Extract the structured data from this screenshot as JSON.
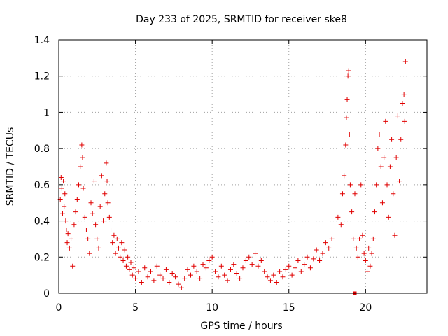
{
  "chart_data": {
    "type": "scatter",
    "title": "Day 233 of 2025, SRMTID for receiver ske8",
    "xlabel": "GPS time / hours",
    "ylabel": "SRMTID / TECUs",
    "xlim": [
      0,
      24
    ],
    "ylim": [
      0,
      1.4
    ],
    "xticks": [
      0,
      5,
      10,
      15,
      20
    ],
    "xtick_labels": [
      "0",
      "5",
      "10",
      "15",
      "20"
    ],
    "yticks": [
      0,
      0.2,
      0.4,
      0.6,
      0.8,
      1,
      1.2,
      1.4
    ],
    "ytick_labels": [
      "0",
      "0.2",
      "0.4",
      "0.6",
      "0.8",
      "1",
      "1.2",
      "1.4"
    ],
    "grid": true,
    "marker": "plus",
    "color": "#e00000",
    "series": [
      {
        "name": "SRMTID",
        "points": [
          [
            0.1,
            0.52
          ],
          [
            0.15,
            0.64
          ],
          [
            0.2,
            0.58
          ],
          [
            0.25,
            0.44
          ],
          [
            0.3,
            0.62
          ],
          [
            0.35,
            0.48
          ],
          [
            0.4,
            0.55
          ],
          [
            0.45,
            0.4
          ],
          [
            0.5,
            0.35
          ],
          [
            0.55,
            0.28
          ],
          [
            0.6,
            0.33
          ],
          [
            0.7,
            0.25
          ],
          [
            0.8,
            0.3
          ],
          [
            0.9,
            0.15
          ],
          [
            1.0,
            0.38
          ],
          [
            1.1,
            0.45
          ],
          [
            1.2,
            0.52
          ],
          [
            1.3,
            0.6
          ],
          [
            1.4,
            0.7
          ],
          [
            1.5,
            0.82
          ],
          [
            1.55,
            0.75
          ],
          [
            1.6,
            0.58
          ],
          [
            1.7,
            0.42
          ],
          [
            1.8,
            0.35
          ],
          [
            1.9,
            0.3
          ],
          [
            2.0,
            0.22
          ],
          [
            2.1,
            0.5
          ],
          [
            2.2,
            0.44
          ],
          [
            2.3,
            0.62
          ],
          [
            2.4,
            0.38
          ],
          [
            2.5,
            0.3
          ],
          [
            2.6,
            0.25
          ],
          [
            2.7,
            0.48
          ],
          [
            2.8,
            0.65
          ],
          [
            2.9,
            0.4
          ],
          [
            3.0,
            0.55
          ],
          [
            3.1,
            0.72
          ],
          [
            3.15,
            0.62
          ],
          [
            3.2,
            0.5
          ],
          [
            3.3,
            0.42
          ],
          [
            3.4,
            0.35
          ],
          [
            3.5,
            0.28
          ],
          [
            3.6,
            0.32
          ],
          [
            3.7,
            0.22
          ],
          [
            3.8,
            0.3
          ],
          [
            3.9,
            0.25
          ],
          [
            4.0,
            0.2
          ],
          [
            4.1,
            0.28
          ],
          [
            4.2,
            0.18
          ],
          [
            4.3,
            0.24
          ],
          [
            4.4,
            0.15
          ],
          [
            4.5,
            0.2
          ],
          [
            4.6,
            0.13
          ],
          [
            4.7,
            0.17
          ],
          [
            4.8,
            0.1
          ],
          [
            4.9,
            0.14
          ],
          [
            5.0,
            0.08
          ],
          [
            5.2,
            0.12
          ],
          [
            5.4,
            0.06
          ],
          [
            5.6,
            0.14
          ],
          [
            5.8,
            0.09
          ],
          [
            6.0,
            0.12
          ],
          [
            6.2,
            0.07
          ],
          [
            6.4,
            0.15
          ],
          [
            6.6,
            0.1
          ],
          [
            6.8,
            0.08
          ],
          [
            7.0,
            0.13
          ],
          [
            7.2,
            0.06
          ],
          [
            7.4,
            0.11
          ],
          [
            7.6,
            0.09
          ],
          [
            7.8,
            0.05
          ],
          [
            8.0,
            0.03
          ],
          [
            8.2,
            0.08
          ],
          [
            8.4,
            0.13
          ],
          [
            8.6,
            0.1
          ],
          [
            8.8,
            0.15
          ],
          [
            9.0,
            0.12
          ],
          [
            9.2,
            0.08
          ],
          [
            9.4,
            0.16
          ],
          [
            9.6,
            0.14
          ],
          [
            9.8,
            0.18
          ],
          [
            10.0,
            0.2
          ],
          [
            10.2,
            0.12
          ],
          [
            10.4,
            0.09
          ],
          [
            10.6,
            0.15
          ],
          [
            10.8,
            0.1
          ],
          [
            11.0,
            0.07
          ],
          [
            11.2,
            0.13
          ],
          [
            11.4,
            0.16
          ],
          [
            11.6,
            0.11
          ],
          [
            11.8,
            0.08
          ],
          [
            12.0,
            0.14
          ],
          [
            12.2,
            0.18
          ],
          [
            12.4,
            0.2
          ],
          [
            12.6,
            0.16
          ],
          [
            12.8,
            0.22
          ],
          [
            13.0,
            0.15
          ],
          [
            13.2,
            0.18
          ],
          [
            13.4,
            0.12
          ],
          [
            13.6,
            0.09
          ],
          [
            13.8,
            0.07
          ],
          [
            14.0,
            0.1
          ],
          [
            14.2,
            0.06
          ],
          [
            14.4,
            0.12
          ],
          [
            14.6,
            0.09
          ],
          [
            14.8,
            0.13
          ],
          [
            15.0,
            0.15
          ],
          [
            15.2,
            0.1
          ],
          [
            15.4,
            0.14
          ],
          [
            15.6,
            0.18
          ],
          [
            15.8,
            0.12
          ],
          [
            16.0,
            0.16
          ],
          [
            16.2,
            0.2
          ],
          [
            16.4,
            0.14
          ],
          [
            16.6,
            0.19
          ],
          [
            16.8,
            0.24
          ],
          [
            17.0,
            0.18
          ],
          [
            17.2,
            0.22
          ],
          [
            17.4,
            0.28
          ],
          [
            17.6,
            0.25
          ],
          [
            17.8,
            0.3
          ],
          [
            18.0,
            0.35
          ],
          [
            18.2,
            0.42
          ],
          [
            18.4,
            0.38
          ],
          [
            18.5,
            0.55
          ],
          [
            18.6,
            0.65
          ],
          [
            18.7,
            0.82
          ],
          [
            18.75,
            0.97
          ],
          [
            18.8,
            1.07
          ],
          [
            18.85,
            1.2
          ],
          [
            18.9,
            1.23
          ],
          [
            18.95,
            0.88
          ],
          [
            19.0,
            0.6
          ],
          [
            19.1,
            0.45
          ],
          [
            19.2,
            0.3
          ],
          [
            19.3,
            0.55
          ],
          [
            19.4,
            0.25
          ],
          [
            19.5,
            0.2
          ],
          [
            19.6,
            0.3
          ],
          [
            19.7,
            0.6
          ],
          [
            19.8,
            0.32
          ],
          [
            19.9,
            0.22
          ],
          [
            20.0,
            0.18
          ],
          [
            20.1,
            0.12
          ],
          [
            20.2,
            0.25
          ],
          [
            20.3,
            0.15
          ],
          [
            20.4,
            0.22
          ],
          [
            20.5,
            0.3
          ],
          [
            20.6,
            0.45
          ],
          [
            20.7,
            0.6
          ],
          [
            20.8,
            0.8
          ],
          [
            20.9,
            0.88
          ],
          [
            21.0,
            0.7
          ],
          [
            21.1,
            0.5
          ],
          [
            21.2,
            0.75
          ],
          [
            21.3,
            0.95
          ],
          [
            21.4,
            0.6
          ],
          [
            21.5,
            0.42
          ],
          [
            21.6,
            0.7
          ],
          [
            21.7,
            0.85
          ],
          [
            21.8,
            0.55
          ],
          [
            21.9,
            0.32
          ],
          [
            22.0,
            0.75
          ],
          [
            22.1,
            0.98
          ],
          [
            22.2,
            0.62
          ],
          [
            22.3,
            0.85
          ],
          [
            22.4,
            1.05
          ],
          [
            22.5,
            1.1
          ],
          [
            22.55,
            0.95
          ],
          [
            22.6,
            1.28
          ]
        ]
      }
    ],
    "extra_mark": {
      "x": 19.3,
      "y": 0,
      "shape": "square"
    }
  }
}
